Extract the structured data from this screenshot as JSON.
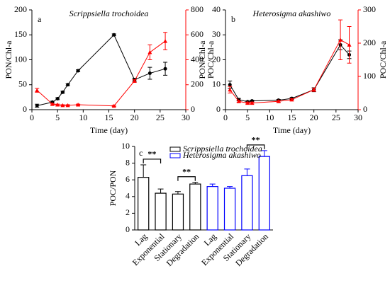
{
  "chart_data": [
    {
      "type": "line",
      "label": "a",
      "title": "Scrippsiella trochoidea",
      "xlabel": "Time (day)",
      "ylabel": "PON/Chl-a",
      "y2label": "POC/Chl-a",
      "xlim": [
        0,
        30
      ],
      "xticks": [
        0,
        5,
        10,
        15,
        20,
        25,
        30
      ],
      "ylim": [
        0,
        200
      ],
      "yticks": [
        0,
        50,
        100,
        150,
        200
      ],
      "y2lim": [
        0,
        800
      ],
      "y2ticks": [
        0,
        200,
        400,
        600,
        800
      ],
      "series": [
        {
          "color": "#000000",
          "marker": "circle",
          "x": [
            1,
            4,
            5,
            6,
            7,
            9,
            16,
            20,
            23,
            26
          ],
          "values": [
            8,
            15,
            22,
            35,
            50,
            78,
            150,
            60,
            73,
            82
          ],
          "errors": [
            3,
            2,
            2,
            2,
            2,
            2,
            2,
            3,
            12,
            13
          ]
        },
        {
          "color": "#ff0000",
          "marker": "triangle",
          "axis": "y2",
          "x": [
            1,
            4,
            5,
            6,
            7,
            9,
            16,
            20,
            23,
            26
          ],
          "values": [
            155,
            45,
            40,
            35,
            35,
            40,
            30,
            230,
            460,
            550
          ],
          "errors": [
            15,
            5,
            5,
            5,
            5,
            5,
            5,
            10,
            60,
            70
          ]
        }
      ]
    },
    {
      "type": "line",
      "label": "b",
      "title": "Heterosigma akashiwo",
      "xlabel": "Time (day)",
      "ylabel": "PON/Chl-a",
      "y2label": "POC/Chl-a",
      "xlim": [
        0,
        30
      ],
      "xticks": [
        0,
        5,
        10,
        15,
        20,
        25,
        30
      ],
      "ylim": [
        0,
        40
      ],
      "yticks": [
        0,
        10,
        20,
        30,
        40
      ],
      "y2lim": [
        0,
        300
      ],
      "y2ticks": [
        0,
        100,
        200,
        300
      ],
      "series": [
        {
          "color": "#000000",
          "marker": "circle",
          "x": [
            1,
            3,
            5,
            6,
            12,
            15,
            20,
            26,
            28
          ],
          "values": [
            10,
            4,
            3.2,
            3.5,
            3.8,
            4.5,
            8,
            26,
            22
          ],
          "errors": [
            1.5,
            0.5,
            0.3,
            0.3,
            0.3,
            0.4,
            0.8,
            2,
            1.5
          ]
        },
        {
          "color": "#ff0000",
          "marker": "triangle",
          "axis": "y2",
          "x": [
            1,
            3,
            5,
            6,
            12,
            15,
            20,
            26,
            28
          ],
          "values": [
            60,
            25,
            20,
            20,
            25,
            30,
            60,
            210,
            195
          ],
          "errors": [
            10,
            3,
            3,
            3,
            3,
            3,
            5,
            60,
            55
          ]
        }
      ]
    },
    {
      "type": "bar",
      "label": "c",
      "ylabel": "POC/PON",
      "categories": [
        "Lag",
        "Exponential",
        "Stationary",
        "Degradation",
        "Lag",
        "Exponential",
        "Stationary",
        "Degradation"
      ],
      "ylim": [
        0,
        10
      ],
      "yticks": [
        0,
        2,
        4,
        6,
        8,
        10
      ],
      "annotations": [
        "**",
        "**",
        "**"
      ],
      "series": [
        {
          "name": "Scrippsiella trochoidea",
          "color": "#000000",
          "values": [
            6.3,
            4.4,
            4.3,
            5.5,
            null,
            null,
            null,
            null
          ],
          "errors": [
            1.5,
            0.5,
            0.3,
            0.2,
            null,
            null,
            null,
            null
          ]
        },
        {
          "name": "Heterosigma akashiwo",
          "color": "#0000ff",
          "values": [
            null,
            null,
            null,
            null,
            5.2,
            5.0,
            6.5,
            8.8
          ],
          "errors": [
            null,
            null,
            null,
            null,
            0.3,
            0.2,
            0.8,
            0.7
          ]
        }
      ]
    }
  ]
}
